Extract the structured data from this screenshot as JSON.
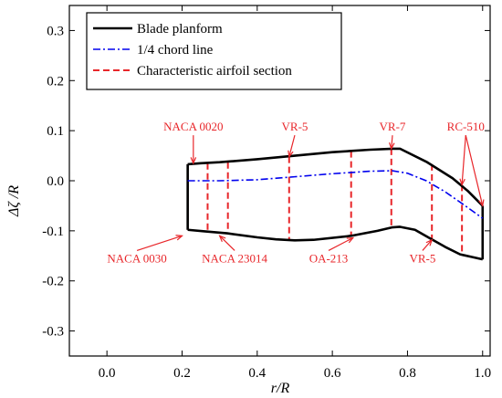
{
  "chart_data": {
    "type": "line",
    "xlabel": "r/R",
    "ylabel": "Δζ /R",
    "xlim": [
      -0.1,
      1.02
    ],
    "ylim": [
      -0.35,
      0.35
    ],
    "xticks": [
      "0.0",
      "0.2",
      "0.4",
      "0.6",
      "0.8",
      "1.0"
    ],
    "yticks": [
      "0.3",
      "0.2",
      "0.1",
      "0.0",
      "-0.1",
      "-0.2",
      "-0.3"
    ],
    "xtick_values": [
      0.0,
      0.2,
      0.4,
      0.6,
      0.8,
      1.0
    ],
    "ytick_values": [
      0.3,
      0.2,
      0.1,
      0.0,
      -0.1,
      -0.2,
      -0.3
    ],
    "grid": false,
    "legend_position": "top-left",
    "series": [
      {
        "name": "Blade planform",
        "color": "#000000",
        "style": "solid",
        "x": [
          0.215,
          0.215,
          0.25,
          0.3,
          0.4,
          0.5,
          0.6,
          0.7,
          0.76,
          0.78,
          0.85,
          0.92,
          0.96,
          1.0,
          1.0,
          0.97,
          0.94,
          0.9,
          0.86,
          0.82,
          0.78,
          0.76,
          0.72,
          0.65,
          0.55,
          0.5,
          0.45,
          0.4,
          0.32,
          0.26,
          0.215
        ],
        "y": [
          0.033,
          -0.098,
          0.035,
          0.037,
          0.043,
          0.05,
          0.057,
          0.062,
          0.064,
          0.064,
          0.038,
          0.005,
          -0.02,
          -0.05,
          -0.157,
          -0.152,
          -0.147,
          -0.132,
          -0.115,
          -0.098,
          -0.092,
          -0.093,
          -0.1,
          -0.11,
          -0.118,
          -0.119,
          -0.117,
          -0.113,
          -0.105,
          -0.101,
          -0.098
        ]
      },
      {
        "name": "1/4 chord line",
        "color": "#0000ee",
        "style": "dashdot",
        "x": [
          0.215,
          0.3,
          0.4,
          0.5,
          0.6,
          0.7,
          0.76,
          0.8,
          0.85,
          0.9,
          0.95,
          1.0
        ],
        "y": [
          0.0,
          0.0,
          0.002,
          0.008,
          0.014,
          0.019,
          0.02,
          0.015,
          0.0,
          -0.022,
          -0.048,
          -0.075
        ]
      },
      {
        "name": "Characteristic airfoil section",
        "color": "#e8262a",
        "style": "dashed",
        "sections": [
          {
            "x": 0.215,
            "y_top": 0.033,
            "y_bot": -0.098
          },
          {
            "x": 0.268,
            "y_top": 0.035,
            "y_bot": -0.101
          },
          {
            "x": 0.322,
            "y_top": 0.037,
            "y_bot": -0.106
          },
          {
            "x": 0.485,
            "y_top": 0.048,
            "y_bot": -0.119
          },
          {
            "x": 0.65,
            "y_top": 0.059,
            "y_bot": -0.11
          },
          {
            "x": 0.757,
            "y_top": 0.064,
            "y_bot": -0.093
          },
          {
            "x": 0.865,
            "y_top": 0.033,
            "y_bot": -0.115
          },
          {
            "x": 0.945,
            "y_top": -0.008,
            "y_bot": -0.148
          },
          {
            "x": 1.0,
            "y_top": -0.05,
            "y_bot": -0.157
          }
        ]
      }
    ],
    "annotations": [
      {
        "text": "NACA 0020",
        "x": 0.23,
        "y": 0.1,
        "tx": 0.23,
        "ty": 0.035
      },
      {
        "text": "VR-5",
        "x": 0.5,
        "y": 0.1,
        "tx": 0.485,
        "ty": 0.048
      },
      {
        "text": "VR-7",
        "x": 0.76,
        "y": 0.1,
        "tx": 0.757,
        "ty": 0.064
      },
      {
        "text": "RC-510",
        "x": 0.955,
        "y": 0.1,
        "tx": 0.945,
        "ty": -0.008,
        "tx2": 1.0,
        "ty2": -0.05
      },
      {
        "text": "NACA 0030",
        "x": 0.08,
        "y": -0.163,
        "tx": 0.2,
        "ty": -0.11
      },
      {
        "text": "NACA 23014",
        "x": 0.34,
        "y": -0.163,
        "tx": 0.3,
        "ty": -0.11
      },
      {
        "text": "OA-213",
        "x": 0.59,
        "y": -0.163,
        "tx": 0.655,
        "ty": -0.114
      },
      {
        "text": "VR-5",
        "x": 0.84,
        "y": -0.163,
        "tx": 0.865,
        "ty": -0.118
      }
    ]
  }
}
